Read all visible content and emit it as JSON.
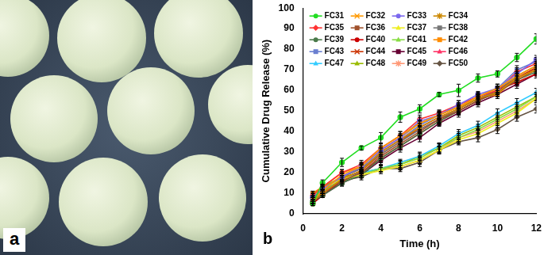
{
  "image": {
    "label": "a"
  },
  "chart_data": {
    "type": "line",
    "annotations": [
      "b"
    ],
    "x_label": "Time (h)",
    "y_label": "Cumulative Drug Release (%)",
    "x": [
      0.5,
      1,
      2,
      3,
      4,
      5,
      6,
      7,
      8,
      9,
      10,
      11,
      12
    ],
    "xlim": [
      0,
      12
    ],
    "xticks": [
      0,
      2,
      4,
      6,
      8,
      10,
      12
    ],
    "ylim": [
      0,
      100
    ],
    "yticks": [
      0,
      10,
      20,
      30,
      40,
      50,
      60,
      70,
      80,
      90,
      100
    ],
    "grid": false,
    "legend": "top-left",
    "series": [
      {
        "name": "FC31",
        "color": "#22dd22",
        "marker": "circle",
        "values": [
          5,
          15,
          25,
          32,
          37,
          47,
          51,
          58,
          60,
          66,
          68,
          76,
          85
        ],
        "errors": [
          1,
          1.5,
          2,
          1,
          2.5,
          2.5,
          2,
          1,
          3,
          2,
          1.5,
          2,
          2.5
        ]
      },
      {
        "name": "FC32",
        "color": "#ff9900",
        "marker": "x",
        "values": [
          7,
          11,
          19,
          23,
          32,
          38,
          44,
          48,
          52,
          57,
          61,
          67,
          72
        ],
        "errors": [
          1,
          1,
          1.5,
          2,
          2,
          2,
          1.5,
          2,
          2,
          1.5,
          2,
          2,
          2
        ]
      },
      {
        "name": "FC33",
        "color": "#7b68ee",
        "marker": "circle",
        "values": [
          8,
          12,
          18,
          23,
          31,
          37,
          45,
          48,
          53,
          58,
          61,
          68,
          75
        ],
        "errors": [
          1,
          1,
          2,
          1.5,
          2,
          1.5,
          2,
          1.5,
          2,
          1.5,
          2,
          2,
          2
        ]
      },
      {
        "name": "FC34",
        "color": "#cc8800",
        "marker": "star",
        "values": [
          6,
          10,
          17,
          21,
          30,
          36,
          42,
          47,
          51,
          56,
          59,
          66,
          70
        ],
        "errors": [
          1,
          1,
          1.5,
          1.5,
          2,
          2,
          2,
          1.5,
          1.5,
          2,
          2,
          2,
          2
        ]
      },
      {
        "name": "FC35",
        "color": "#ff3333",
        "marker": "diamond",
        "values": [
          9,
          13,
          20,
          24,
          32,
          38,
          46,
          49,
          53,
          57,
          60,
          69,
          73
        ],
        "errors": [
          1,
          1.5,
          1.5,
          2,
          2,
          2,
          2,
          1.5,
          2,
          1.5,
          2,
          2,
          2
        ]
      },
      {
        "name": "FC36",
        "color": "#a0522d",
        "marker": "square",
        "values": [
          6,
          10,
          16,
          20,
          28,
          34,
          40,
          46,
          50,
          55,
          59,
          65,
          70
        ],
        "errors": [
          1,
          1,
          1.5,
          1.5,
          2,
          1.5,
          2,
          2,
          1.5,
          2,
          2,
          2,
          2
        ]
      },
      {
        "name": "FC37",
        "color": "#eeee22",
        "marker": "triangle",
        "values": [
          9,
          12,
          17,
          19,
          21,
          23,
          26,
          31,
          36,
          39,
          44,
          49,
          56
        ],
        "errors": [
          1,
          1,
          1.5,
          1.5,
          1.5,
          1.5,
          2,
          1.5,
          2,
          1.5,
          2,
          2,
          2
        ]
      },
      {
        "name": "FC38",
        "color": "#777777",
        "marker": "square",
        "values": [
          7,
          11,
          18,
          22,
          29,
          35,
          41,
          46,
          51,
          56,
          60,
          67,
          72
        ],
        "errors": [
          1,
          1,
          1.5,
          2,
          2,
          1.5,
          2,
          1.5,
          2,
          2,
          1.5,
          2,
          2
        ]
      },
      {
        "name": "FC39",
        "color": "#4a7a4a",
        "marker": "circle",
        "values": [
          6,
          9,
          15,
          19,
          27,
          33,
          39,
          45,
          50,
          55,
          59,
          65,
          69
        ],
        "errors": [
          1,
          1,
          1.5,
          1.5,
          2,
          2,
          1.5,
          2,
          2,
          1.5,
          2,
          2,
          2
        ]
      },
      {
        "name": "FC40",
        "color": "#cc0000",
        "marker": "circle",
        "values": [
          5,
          9,
          16,
          20,
          27,
          33,
          39,
          45,
          50,
          55,
          60,
          64,
          68
        ],
        "errors": [
          1,
          1,
          1.5,
          1.5,
          2,
          2,
          2,
          1.5,
          2,
          2,
          2,
          2,
          2
        ]
      },
      {
        "name": "FC41",
        "color": "#88dd44",
        "marker": "triangle",
        "values": [
          8,
          11,
          16,
          19,
          22,
          24,
          27,
          32,
          37,
          41,
          46,
          51,
          57
        ],
        "errors": [
          1,
          1,
          1.5,
          1.5,
          1.5,
          1.5,
          1.5,
          2,
          2,
          1.5,
          2,
          2,
          2
        ]
      },
      {
        "name": "FC42",
        "color": "#ff8c00",
        "marker": "square",
        "values": [
          10,
          13,
          20,
          23,
          31,
          37,
          44,
          48,
          52,
          56,
          58,
          66,
          70
        ],
        "errors": [
          1,
          1,
          1.5,
          2,
          2,
          2,
          1.5,
          1.5,
          2,
          2,
          2,
          2,
          2
        ]
      },
      {
        "name": "FC43",
        "color": "#6a7fd0",
        "marker": "square",
        "values": [
          7,
          11,
          18,
          22,
          30,
          36,
          43,
          48,
          52,
          57,
          61,
          70,
          74
        ],
        "errors": [
          1,
          1,
          1.5,
          1.5,
          2,
          2,
          2,
          2,
          1.5,
          2,
          2,
          2,
          2
        ]
      },
      {
        "name": "FC44",
        "color": "#cc3300",
        "marker": "x",
        "values": [
          6,
          10,
          17,
          21,
          29,
          35,
          42,
          47,
          51,
          56,
          60,
          66,
          71
        ],
        "errors": [
          1,
          1,
          1.5,
          1.5,
          2,
          1.5,
          2,
          2,
          2,
          1.5,
          2,
          2,
          2
        ]
      },
      {
        "name": "FC45",
        "color": "#660033",
        "marker": "square",
        "values": [
          5,
          9,
          15,
          19,
          26,
          32,
          37,
          44,
          49,
          54,
          58,
          63,
          68
        ],
        "errors": [
          1,
          1,
          1.5,
          1.5,
          2,
          2,
          2,
          1.5,
          2,
          2,
          2,
          2,
          2
        ]
      },
      {
        "name": "FC46",
        "color": "#ff3366",
        "marker": "triangle",
        "values": [
          8,
          12,
          18,
          22,
          30,
          36,
          41,
          46,
          50,
          55,
          60,
          66,
          71
        ],
        "errors": [
          1,
          1,
          1.5,
          2,
          2,
          2,
          1.5,
          2,
          1.5,
          2,
          2,
          2,
          2
        ]
      },
      {
        "name": "FC47",
        "color": "#33ccff",
        "marker": "triangle",
        "values": [
          7,
          11,
          17,
          20,
          22,
          25,
          28,
          33,
          39,
          43,
          49,
          54,
          59
        ],
        "errors": [
          1,
          1,
          1.5,
          1.5,
          1.5,
          1.5,
          2,
          1.5,
          2,
          2,
          2,
          2,
          2
        ]
      },
      {
        "name": "FC48",
        "color": "#99bb00",
        "marker": "triangle",
        "values": [
          9,
          13,
          18,
          20,
          22,
          24,
          28,
          32,
          38,
          42,
          47,
          52,
          57
        ],
        "errors": [
          1,
          1,
          1.5,
          1.5,
          1.5,
          2,
          1.5,
          2,
          2,
          1.5,
          2,
          2,
          2
        ]
      },
      {
        "name": "FC49",
        "color": "#ff9977",
        "marker": "star",
        "values": [
          10,
          13,
          17,
          19,
          22,
          23,
          26,
          31,
          37,
          40,
          45,
          50,
          56
        ],
        "errors": [
          1,
          1,
          1.5,
          1.5,
          1.5,
          1.5,
          1.5,
          2,
          2,
          1.5,
          2,
          2,
          2
        ]
      },
      {
        "name": "FC50",
        "color": "#665544",
        "marker": "diamond",
        "values": [
          8,
          12,
          16,
          18,
          22,
          22,
          25,
          31,
          35,
          37,
          41,
          47,
          51
        ],
        "errors": [
          1,
          1,
          1.5,
          1.5,
          1.5,
          1.5,
          2,
          1.5,
          1.5,
          2,
          2,
          2,
          2
        ]
      }
    ]
  }
}
